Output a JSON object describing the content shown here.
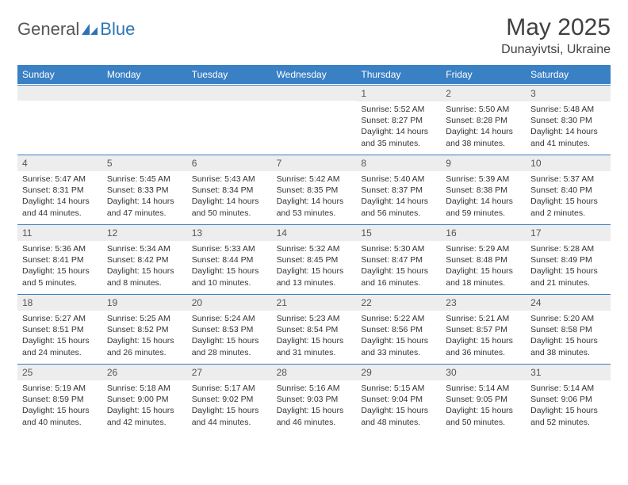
{
  "logo": {
    "part1": "General",
    "part2": "Blue"
  },
  "title": "May 2025",
  "location": "Dunayivtsi, Ukraine",
  "colors": {
    "header_bg": "#3a80c4",
    "header_text": "#ffffff",
    "daynum_bg": "#ededed",
    "border": "#3a80c4",
    "text": "#333333",
    "logo_gray": "#555555",
    "logo_blue": "#2e74b5"
  },
  "weekdays": [
    "Sunday",
    "Monday",
    "Tuesday",
    "Wednesday",
    "Thursday",
    "Friday",
    "Saturday"
  ],
  "first_weekday_index": 4,
  "days": [
    {
      "n": 1,
      "sunrise": "5:52 AM",
      "sunset": "8:27 PM",
      "daylight": "14 hours and 35 minutes."
    },
    {
      "n": 2,
      "sunrise": "5:50 AM",
      "sunset": "8:28 PM",
      "daylight": "14 hours and 38 minutes."
    },
    {
      "n": 3,
      "sunrise": "5:48 AM",
      "sunset": "8:30 PM",
      "daylight": "14 hours and 41 minutes."
    },
    {
      "n": 4,
      "sunrise": "5:47 AM",
      "sunset": "8:31 PM",
      "daylight": "14 hours and 44 minutes."
    },
    {
      "n": 5,
      "sunrise": "5:45 AM",
      "sunset": "8:33 PM",
      "daylight": "14 hours and 47 minutes."
    },
    {
      "n": 6,
      "sunrise": "5:43 AM",
      "sunset": "8:34 PM",
      "daylight": "14 hours and 50 minutes."
    },
    {
      "n": 7,
      "sunrise": "5:42 AM",
      "sunset": "8:35 PM",
      "daylight": "14 hours and 53 minutes."
    },
    {
      "n": 8,
      "sunrise": "5:40 AM",
      "sunset": "8:37 PM",
      "daylight": "14 hours and 56 minutes."
    },
    {
      "n": 9,
      "sunrise": "5:39 AM",
      "sunset": "8:38 PM",
      "daylight": "14 hours and 59 minutes."
    },
    {
      "n": 10,
      "sunrise": "5:37 AM",
      "sunset": "8:40 PM",
      "daylight": "15 hours and 2 minutes."
    },
    {
      "n": 11,
      "sunrise": "5:36 AM",
      "sunset": "8:41 PM",
      "daylight": "15 hours and 5 minutes."
    },
    {
      "n": 12,
      "sunrise": "5:34 AM",
      "sunset": "8:42 PM",
      "daylight": "15 hours and 8 minutes."
    },
    {
      "n": 13,
      "sunrise": "5:33 AM",
      "sunset": "8:44 PM",
      "daylight": "15 hours and 10 minutes."
    },
    {
      "n": 14,
      "sunrise": "5:32 AM",
      "sunset": "8:45 PM",
      "daylight": "15 hours and 13 minutes."
    },
    {
      "n": 15,
      "sunrise": "5:30 AM",
      "sunset": "8:47 PM",
      "daylight": "15 hours and 16 minutes."
    },
    {
      "n": 16,
      "sunrise": "5:29 AM",
      "sunset": "8:48 PM",
      "daylight": "15 hours and 18 minutes."
    },
    {
      "n": 17,
      "sunrise": "5:28 AM",
      "sunset": "8:49 PM",
      "daylight": "15 hours and 21 minutes."
    },
    {
      "n": 18,
      "sunrise": "5:27 AM",
      "sunset": "8:51 PM",
      "daylight": "15 hours and 24 minutes."
    },
    {
      "n": 19,
      "sunrise": "5:25 AM",
      "sunset": "8:52 PM",
      "daylight": "15 hours and 26 minutes."
    },
    {
      "n": 20,
      "sunrise": "5:24 AM",
      "sunset": "8:53 PM",
      "daylight": "15 hours and 28 minutes."
    },
    {
      "n": 21,
      "sunrise": "5:23 AM",
      "sunset": "8:54 PM",
      "daylight": "15 hours and 31 minutes."
    },
    {
      "n": 22,
      "sunrise": "5:22 AM",
      "sunset": "8:56 PM",
      "daylight": "15 hours and 33 minutes."
    },
    {
      "n": 23,
      "sunrise": "5:21 AM",
      "sunset": "8:57 PM",
      "daylight": "15 hours and 36 minutes."
    },
    {
      "n": 24,
      "sunrise": "5:20 AM",
      "sunset": "8:58 PM",
      "daylight": "15 hours and 38 minutes."
    },
    {
      "n": 25,
      "sunrise": "5:19 AM",
      "sunset": "8:59 PM",
      "daylight": "15 hours and 40 minutes."
    },
    {
      "n": 26,
      "sunrise": "5:18 AM",
      "sunset": "9:00 PM",
      "daylight": "15 hours and 42 minutes."
    },
    {
      "n": 27,
      "sunrise": "5:17 AM",
      "sunset": "9:02 PM",
      "daylight": "15 hours and 44 minutes."
    },
    {
      "n": 28,
      "sunrise": "5:16 AM",
      "sunset": "9:03 PM",
      "daylight": "15 hours and 46 minutes."
    },
    {
      "n": 29,
      "sunrise": "5:15 AM",
      "sunset": "9:04 PM",
      "daylight": "15 hours and 48 minutes."
    },
    {
      "n": 30,
      "sunrise": "5:14 AM",
      "sunset": "9:05 PM",
      "daylight": "15 hours and 50 minutes."
    },
    {
      "n": 31,
      "sunrise": "5:14 AM",
      "sunset": "9:06 PM",
      "daylight": "15 hours and 52 minutes."
    }
  ],
  "labels": {
    "sunrise_prefix": "Sunrise: ",
    "sunset_prefix": "Sunset: ",
    "daylight_prefix": "Daylight: "
  }
}
